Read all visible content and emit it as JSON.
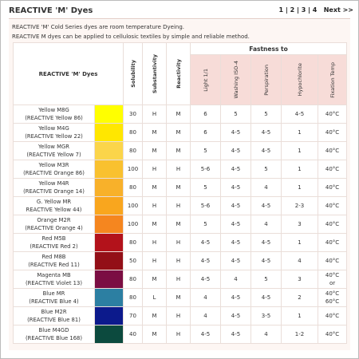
{
  "header": {
    "title": "REACTIVE 'M' Dyes",
    "pages": [
      "1",
      "2",
      "3",
      "4"
    ],
    "next": "Next >>"
  },
  "intro": [
    "REACTIVE 'M' Cold Series dyes are room temperature Dyeing.",
    "REACTIVE M dyes can be applied to cellulosic textiles by simple and reliable method."
  ],
  "table": {
    "dyes_header": "REACTIVE 'M' Dyes",
    "fastness_header": "Fastness to",
    "columns": [
      "Solubility",
      "Substantivity",
      "Reactivity",
      "Light 1/1",
      "Washing ISO-4",
      "Perspiration",
      "Hypochlorite",
      "Fixation Temp"
    ],
    "rows": [
      {
        "name": [
          "Yellow M8G",
          "(REACTIVE Yellow 86)"
        ],
        "swatch": "#ffff00",
        "values": [
          "30",
          "H",
          "M",
          "6",
          "5",
          "5",
          "4-5",
          "40°C"
        ]
      },
      {
        "name": [
          "Yellow M4G",
          "(REACTIVE Yellow 22)"
        ],
        "swatch": "#ffe700",
        "values": [
          "80",
          "M",
          "M",
          "6",
          "4-5",
          "4-5",
          "1",
          "40°C"
        ]
      },
      {
        "name": [
          "Yellow MGR",
          "(REACTIVE Yellow 7)"
        ],
        "swatch": "#fbd54a",
        "values": [
          "80",
          "M",
          "M",
          "5",
          "4-5",
          "4-5",
          "1",
          "40°C"
        ]
      },
      {
        "name": [
          "Yellow M3R",
          "(REACTIVE Orange 86)"
        ],
        "swatch": "#f9c12f",
        "values": [
          "100",
          "H",
          "H",
          "5-6",
          "4-5",
          "5",
          "1",
          "40°C"
        ]
      },
      {
        "name": [
          "Yellow M4R",
          "(REACTIVE Orange 14)"
        ],
        "swatch": "#f8b12a",
        "values": [
          "80",
          "M",
          "M",
          "5",
          "4-5",
          "4",
          "1",
          "40°C"
        ]
      },
      {
        "name": [
          "G. Yellow MR",
          "REACTIVE Yellow 44)"
        ],
        "swatch": "#f9a61e",
        "values": [
          "100",
          "H",
          "H",
          "5-6",
          "4-5",
          "4-5",
          "2-3",
          "40°C"
        ]
      },
      {
        "name": [
          "Orange M2R",
          "(REACTIVE Orange 4)"
        ],
        "swatch": "#f5861f",
        "values": [
          "100",
          "M",
          "M",
          "5",
          "4-5",
          "4",
          "3",
          "40°C"
        ]
      },
      {
        "name": [
          "Red M5B",
          "(REACTIVE Red 2)"
        ],
        "swatch": "#b3121b",
        "values": [
          "80",
          "H",
          "H",
          "4-5",
          "4-5",
          "4-5",
          "1",
          "40°C"
        ]
      },
      {
        "name": [
          "Red M8B",
          "(REACTIVE Red 11)"
        ],
        "swatch": "#930f17",
        "values": [
          "50",
          "H",
          "H",
          "4-5",
          "4-5",
          "4-5",
          "4",
          "40°C"
        ]
      },
      {
        "name": [
          "Magenta MB",
          "(REACTIVE Violet 13)"
        ],
        "swatch": "#7b0e43",
        "values": [
          "80",
          "M",
          "H",
          "4-5",
          "4",
          "5",
          "3",
          "40°C or"
        ]
      },
      {
        "name": [
          "Blue MR",
          "(REACTIVE Blue 4)"
        ],
        "swatch": "#2c7fa2",
        "values": [
          "80",
          "L",
          "M",
          "4",
          "4-5",
          "4-5",
          "2",
          "40°C 60°C"
        ]
      },
      {
        "name": [
          "Blue M2R",
          "(REACTIVE Blue 81)"
        ],
        "swatch": "#0c1a8c",
        "values": [
          "70",
          "M",
          "H",
          "4",
          "4-5",
          "3-5",
          "1",
          "40°C"
        ]
      },
      {
        "name": [
          "Blue M4GD",
          "(REACTIVE Blue 168)"
        ],
        "swatch": "#0c4a3e",
        "values": [
          "40",
          "M",
          "H",
          "4-5",
          "4-5",
          "4",
          "1-2",
          "40°C"
        ]
      }
    ]
  }
}
